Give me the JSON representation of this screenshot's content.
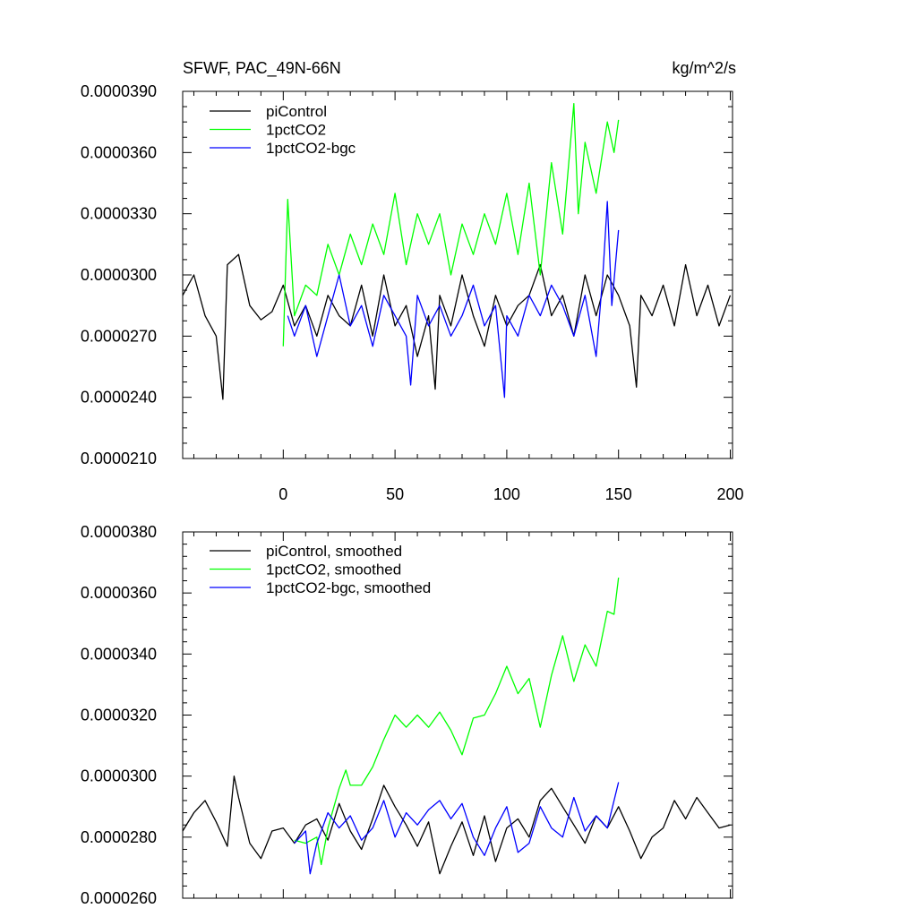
{
  "figure": {
    "title_left": "SFWF, PAC_49N-66N",
    "title_right": "kg/m^2/s"
  },
  "chart_data": [
    {
      "type": "line",
      "xlim": [
        -45,
        201
      ],
      "ylim": [
        2.1e-05,
        3.9e-05
      ],
      "yticks": [
        "0.0000210",
        "0.0000240",
        "0.0000270",
        "0.0000300",
        "0.0000330",
        "0.0000360",
        "0.0000390"
      ],
      "ytick_values": [
        2.1e-05,
        2.4e-05,
        2.7e-05,
        3e-05,
        3.3e-05,
        3.6e-05,
        3.9e-05
      ],
      "xticks": [
        "0",
        "50",
        "100",
        "150",
        "200"
      ],
      "xtick_values": [
        0,
        50,
        100,
        150,
        200
      ],
      "grid": false,
      "legend": "top-left",
      "series": [
        {
          "name": "piControl",
          "color": "#000000",
          "x": [
            -45,
            -40,
            -35,
            -30,
            -27,
            -25,
            -20,
            -15,
            -10,
            -5,
            0,
            5,
            10,
            15,
            20,
            25,
            30,
            35,
            40,
            45,
            50,
            55,
            60,
            65,
            68,
            70,
            75,
            80,
            85,
            90,
            95,
            100,
            105,
            110,
            115,
            120,
            125,
            130,
            135,
            140,
            145,
            150,
            155,
            158,
            160,
            165,
            170,
            175,
            180,
            185,
            190,
            195,
            200
          ],
          "y": [
            2.9e-05,
            3e-05,
            2.8e-05,
            2.7e-05,
            2.39e-05,
            3.05e-05,
            3.1e-05,
            2.85e-05,
            2.78e-05,
            2.82e-05,
            2.95e-05,
            2.75e-05,
            2.85e-05,
            2.7e-05,
            2.9e-05,
            2.8e-05,
            2.75e-05,
            2.95e-05,
            2.7e-05,
            3e-05,
            2.75e-05,
            2.85e-05,
            2.6e-05,
            2.8e-05,
            2.44e-05,
            2.9e-05,
            2.75e-05,
            3e-05,
            2.8e-05,
            2.65e-05,
            2.9e-05,
            2.75e-05,
            2.85e-05,
            2.9e-05,
            3.05e-05,
            2.8e-05,
            2.9e-05,
            2.7e-05,
            3e-05,
            2.8e-05,
            3e-05,
            2.9e-05,
            2.75e-05,
            2.45e-05,
            2.9e-05,
            2.8e-05,
            2.95e-05,
            2.75e-05,
            3.05e-05,
            2.8e-05,
            2.95e-05,
            2.75e-05,
            2.9e-05
          ]
        },
        {
          "name": "1pctCO2",
          "color": "#00ff00",
          "x": [
            0,
            2,
            5,
            10,
            15,
            20,
            25,
            30,
            35,
            40,
            45,
            50,
            55,
            60,
            65,
            70,
            75,
            80,
            85,
            90,
            95,
            100,
            105,
            110,
            115,
            120,
            125,
            130,
            132,
            135,
            140,
            145,
            148,
            150
          ],
          "y": [
            2.65e-05,
            3.37e-05,
            2.8e-05,
            2.95e-05,
            2.9e-05,
            3.15e-05,
            3e-05,
            3.2e-05,
            3.05e-05,
            3.25e-05,
            3.1e-05,
            3.4e-05,
            3.05e-05,
            3.3e-05,
            3.15e-05,
            3.3e-05,
            3e-05,
            3.25e-05,
            3.1e-05,
            3.3e-05,
            3.15e-05,
            3.4e-05,
            3.1e-05,
            3.45e-05,
            3e-05,
            3.55e-05,
            3.2e-05,
            3.84e-05,
            3.3e-05,
            3.65e-05,
            3.4e-05,
            3.75e-05,
            3.6e-05,
            3.76e-05
          ]
        },
        {
          "name": "1pctCO2-bgc",
          "color": "#0000ff",
          "x": [
            2,
            5,
            10,
            15,
            20,
            25,
            30,
            35,
            40,
            45,
            50,
            55,
            57,
            60,
            65,
            70,
            75,
            80,
            85,
            90,
            95,
            99,
            100,
            105,
            110,
            115,
            120,
            125,
            130,
            135,
            140,
            143,
            145,
            147,
            150
          ],
          "y": [
            2.8e-05,
            2.7e-05,
            2.85e-05,
            2.6e-05,
            2.8e-05,
            3e-05,
            2.75e-05,
            2.85e-05,
            2.65e-05,
            2.9e-05,
            2.8e-05,
            2.7e-05,
            2.46e-05,
            2.9e-05,
            2.75e-05,
            2.85e-05,
            2.7e-05,
            2.8e-05,
            2.95e-05,
            2.75e-05,
            2.85e-05,
            2.4e-05,
            2.8e-05,
            2.7e-05,
            2.9e-05,
            2.8e-05,
            2.95e-05,
            2.85e-05,
            2.7e-05,
            2.9e-05,
            2.6e-05,
            3e-05,
            3.36e-05,
            2.85e-05,
            3.22e-05
          ]
        }
      ]
    },
    {
      "type": "line",
      "xlim": [
        -45,
        201
      ],
      "ylim": [
        2.6e-05,
        3.8e-05
      ],
      "yticks": [
        "0.0000260",
        "0.0000280",
        "0.0000300",
        "0.0000320",
        "0.0000340",
        "0.0000360",
        "0.0000380"
      ],
      "ytick_values": [
        2.6e-05,
        2.8e-05,
        3e-05,
        3.2e-05,
        3.4e-05,
        3.6e-05,
        3.8e-05
      ],
      "xtick_values": [
        0,
        50,
        100,
        150,
        200
      ],
      "grid": false,
      "legend": "top-left",
      "series": [
        {
          "name": "piControl, smoothed",
          "color": "#000000",
          "x": [
            -45,
            -40,
            -35,
            -30,
            -25,
            -22,
            -20,
            -15,
            -10,
            -5,
            0,
            5,
            10,
            15,
            20,
            25,
            30,
            35,
            40,
            45,
            50,
            55,
            60,
            65,
            70,
            75,
            80,
            85,
            90,
            95,
            100,
            105,
            110,
            115,
            120,
            125,
            130,
            135,
            140,
            145,
            150,
            155,
            160,
            165,
            170,
            175,
            180,
            185,
            190,
            195,
            200
          ],
          "y": [
            2.82e-05,
            2.88e-05,
            2.92e-05,
            2.85e-05,
            2.77e-05,
            3e-05,
            2.93e-05,
            2.78e-05,
            2.73e-05,
            2.82e-05,
            2.83e-05,
            2.78e-05,
            2.84e-05,
            2.86e-05,
            2.79e-05,
            2.91e-05,
            2.82e-05,
            2.76e-05,
            2.86e-05,
            2.97e-05,
            2.9e-05,
            2.84e-05,
            2.77e-05,
            2.85e-05,
            2.68e-05,
            2.77e-05,
            2.85e-05,
            2.74e-05,
            2.87e-05,
            2.72e-05,
            2.83e-05,
            2.86e-05,
            2.8e-05,
            2.92e-05,
            2.96e-05,
            2.9e-05,
            2.84e-05,
            2.78e-05,
            2.87e-05,
            2.83e-05,
            2.9e-05,
            2.82e-05,
            2.73e-05,
            2.8e-05,
            2.83e-05,
            2.92e-05,
            2.86e-05,
            2.93e-05,
            2.88e-05,
            2.83e-05,
            2.84e-05
          ]
        },
        {
          "name": "1pctCO2, smoothed",
          "color": "#00ff00",
          "x": [
            5,
            10,
            15,
            17,
            20,
            25,
            28,
            30,
            35,
            40,
            45,
            50,
            55,
            60,
            65,
            70,
            75,
            80,
            85,
            90,
            95,
            100,
            105,
            110,
            115,
            120,
            125,
            130,
            135,
            140,
            145,
            148,
            150
          ],
          "y": [
            2.79e-05,
            2.78e-05,
            2.8e-05,
            2.71e-05,
            2.83e-05,
            2.96e-05,
            3.02e-05,
            2.97e-05,
            2.97e-05,
            3.03e-05,
            3.12e-05,
            3.2e-05,
            3.16e-05,
            3.2e-05,
            3.16e-05,
            3.21e-05,
            3.15e-05,
            3.07e-05,
            3.19e-05,
            3.2e-05,
            3.27e-05,
            3.36e-05,
            3.27e-05,
            3.32e-05,
            3.16e-05,
            3.33e-05,
            3.46e-05,
            3.31e-05,
            3.43e-05,
            3.36e-05,
            3.54e-05,
            3.53e-05,
            3.65e-05
          ]
        },
        {
          "name": "1pctCO2-bgc, smoothed",
          "color": "#0000ff",
          "x": [
            5,
            10,
            12,
            15,
            20,
            25,
            30,
            35,
            40,
            45,
            50,
            55,
            60,
            65,
            70,
            75,
            80,
            85,
            90,
            95,
            100,
            105,
            110,
            115,
            120,
            125,
            130,
            135,
            140,
            145,
            150
          ],
          "y": [
            2.78e-05,
            2.82e-05,
            2.68e-05,
            2.78e-05,
            2.88e-05,
            2.83e-05,
            2.87e-05,
            2.79e-05,
            2.83e-05,
            2.92e-05,
            2.8e-05,
            2.88e-05,
            2.84e-05,
            2.89e-05,
            2.92e-05,
            2.86e-05,
            2.91e-05,
            2.8e-05,
            2.74e-05,
            2.83e-05,
            2.9e-05,
            2.75e-05,
            2.78e-05,
            2.9e-05,
            2.83e-05,
            2.8e-05,
            2.93e-05,
            2.82e-05,
            2.87e-05,
            2.83e-05,
            2.98e-05
          ]
        }
      ]
    }
  ]
}
